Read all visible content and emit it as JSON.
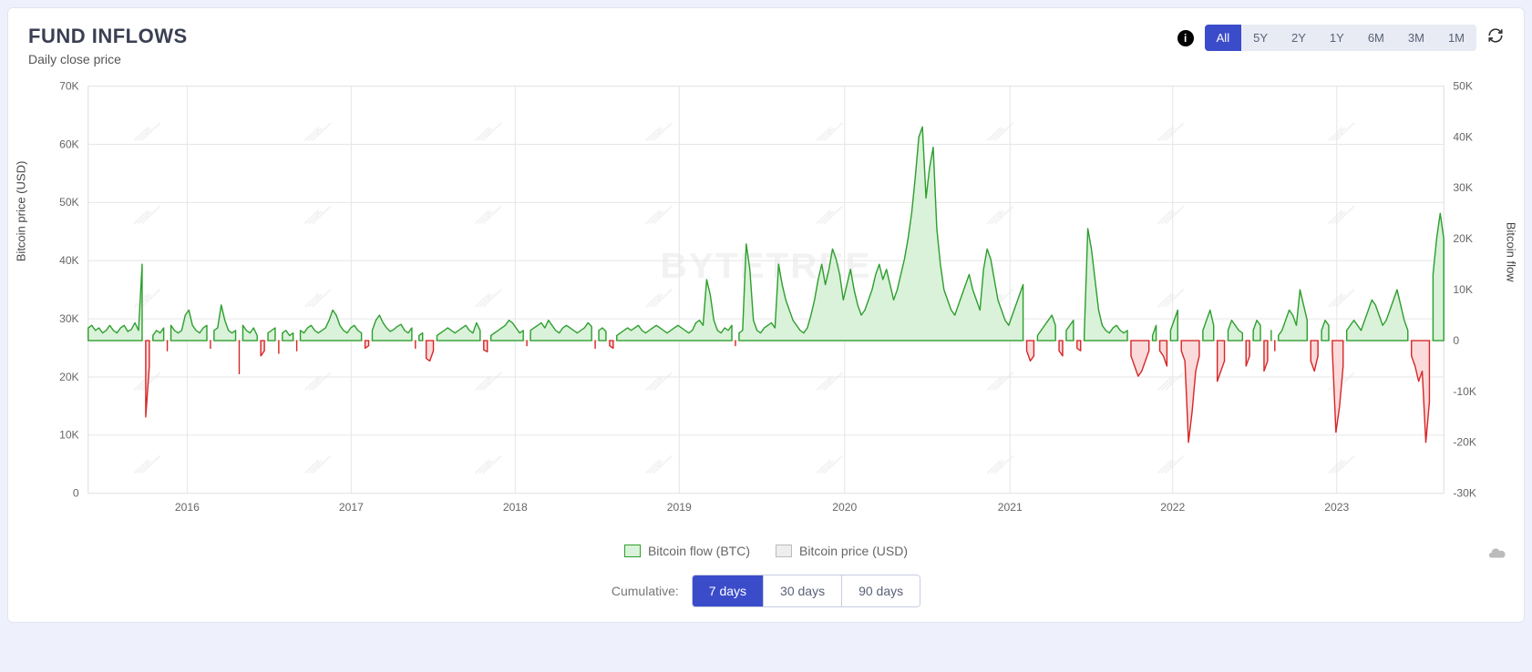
{
  "header": {
    "title": "FUND INFLOWS",
    "subtitle": "Daily close price"
  },
  "range_buttons": [
    "All",
    "5Y",
    "2Y",
    "1Y",
    "6M",
    "3M",
    "1M"
  ],
  "range_active": "All",
  "cumulative_label": "Cumulative:",
  "cumulative_buttons": [
    "7 days",
    "30 days",
    "90 days"
  ],
  "cumulative_active": "7 days",
  "legend": {
    "flow": "Bitcoin flow (BTC)",
    "price": "Bitcoin price (USD)"
  },
  "axes": {
    "left_label": "Bitcoin price (USD)",
    "right_label": "Bitcoin flow",
    "left_tick_labels": [
      "0",
      "10K",
      "20K",
      "30K",
      "40K",
      "50K",
      "60K",
      "70K"
    ],
    "left_tick_values": [
      0,
      10,
      20,
      30,
      40,
      50,
      60,
      70
    ],
    "right_tick_labels": [
      "-30K",
      "-20K",
      "-10K",
      "0",
      "10K",
      "20K",
      "30K",
      "40K",
      "50K"
    ],
    "right_tick_values": [
      -30,
      -20,
      -10,
      0,
      10,
      20,
      30,
      40,
      50
    ],
    "x_tick_labels": [
      "2016",
      "2017",
      "2018",
      "2019",
      "2020",
      "2021",
      "2022",
      "2023"
    ],
    "x_tick_positions": [
      0.073,
      0.194,
      0.315,
      0.436,
      0.558,
      0.68,
      0.8,
      0.921
    ]
  },
  "watermark": "BYTETREE",
  "chart": {
    "type": "area-line-dual-axis",
    "background_color": "#ffffff",
    "grid_color": "#e6e6e6",
    "zero_line_color": "#f0c0c0",
    "positive_flow_color": "#2e9e2e",
    "positive_flow_fill": "#d9f2d9",
    "negative_flow_color": "#d62728",
    "negative_flow_fill": "#fadada",
    "left_ylim": [
      0,
      70
    ],
    "right_ylim": [
      -30,
      50
    ],
    "flow_data": [
      2.5,
      3.0,
      2.0,
      2.5,
      1.5,
      2.0,
      3.0,
      2.0,
      1.5,
      2.5,
      3.0,
      1.8,
      2.2,
      3.5,
      2.0,
      15.0,
      -15.0,
      -5.0,
      1.0,
      2.0,
      1.5,
      2.5,
      -2.0,
      3.0,
      2.0,
      1.5,
      2.0,
      5.0,
      6.0,
      3.0,
      2.0,
      1.5,
      2.5,
      3.0,
      -1.5,
      2.0,
      2.5,
      7.0,
      4.0,
      2.0,
      1.5,
      2.0,
      -6.5,
      3.0,
      2.0,
      1.5,
      2.5,
      1.0,
      -3.0,
      -2.0,
      1.5,
      2.0,
      2.5,
      -2.5,
      1.5,
      2.0,
      1.0,
      1.5,
      -2.0,
      2.0,
      1.5,
      2.5,
      3.0,
      2.0,
      1.5,
      2.0,
      2.5,
      4.0,
      6.0,
      5.0,
      3.0,
      2.0,
      1.5,
      2.5,
      3.0,
      2.0,
      1.5,
      -1.5,
      -1.0,
      2.0,
      4.0,
      5.0,
      3.5,
      2.5,
      1.8,
      2.2,
      2.8,
      3.2,
      2.0,
      1.5,
      2.5,
      -1.5,
      1.0,
      1.5,
      -3.5,
      -4.0,
      -2.0,
      1.0,
      1.5,
      2.0,
      2.5,
      2.0,
      1.5,
      2.0,
      2.5,
      3.0,
      2.0,
      1.5,
      3.5,
      2.0,
      -1.8,
      -2.2,
      1.0,
      1.5,
      2.0,
      2.5,
      3.0,
      4.0,
      3.5,
      2.5,
      1.5,
      2.0,
      -1.0,
      2.0,
      2.5,
      3.0,
      3.5,
      2.5,
      4.0,
      3.0,
      2.0,
      1.5,
      2.5,
      3.0,
      2.5,
      2.0,
      1.5,
      2.0,
      2.5,
      3.5,
      2.8,
      -1.5,
      2.0,
      2.5,
      1.8,
      -1.0,
      -1.5,
      1.0,
      1.5,
      2.0,
      2.5,
      2.0,
      2.5,
      3.0,
      2.0,
      1.5,
      2.0,
      2.5,
      3.0,
      2.5,
      2.0,
      1.5,
      2.0,
      2.5,
      3.0,
      2.5,
      2.0,
      1.5,
      2.0,
      3.5,
      4.0,
      3.0,
      12.0,
      9.0,
      4.0,
      2.0,
      1.5,
      2.5,
      2.0,
      3.0,
      -1.0,
      1.5,
      2.0,
      19.0,
      14.0,
      4.0,
      2.0,
      1.5,
      2.5,
      3.0,
      3.5,
      2.5,
      15.0,
      11.0,
      8.0,
      6.0,
      4.0,
      3.0,
      2.0,
      1.5,
      2.5,
      5.0,
      8.0,
      12.0,
      15.0,
      11.0,
      14.0,
      18.0,
      16.0,
      13.0,
      8.0,
      11.0,
      14.0,
      10.0,
      7.0,
      5.0,
      6.0,
      8.0,
      10.0,
      13.0,
      15.0,
      12.0,
      14.0,
      11.0,
      8.0,
      10.0,
      13.0,
      16.0,
      20.0,
      25.0,
      32.0,
      40.0,
      42.0,
      28.0,
      34.0,
      38.0,
      22.0,
      15.0,
      10.0,
      8.0,
      6.0,
      5.0,
      7.0,
      9.0,
      11.0,
      13.0,
      10.0,
      8.0,
      6.0,
      14.0,
      18.0,
      16.0,
      12.0,
      8.0,
      6.0,
      4.0,
      3.0,
      5.0,
      7.0,
      9.0,
      11.0,
      -2.0,
      -4.0,
      -3.0,
      1.0,
      2.0,
      3.0,
      4.0,
      5.0,
      3.0,
      -2.0,
      -3.0,
      2.0,
      3.0,
      4.0,
      -1.5,
      -2.0,
      1.0,
      22.0,
      18.0,
      12.0,
      6.0,
      3.0,
      2.0,
      1.5,
      2.5,
      3.0,
      2.0,
      1.5,
      2.0,
      -3.0,
      -5.0,
      -7.0,
      -6.0,
      -4.0,
      -2.0,
      1.0,
      3.0,
      -2.0,
      -3.0,
      -5.0,
      2.0,
      4.0,
      6.0,
      -2.0,
      -4.0,
      -20.0,
      -14.0,
      -6.0,
      -3.0,
      2.0,
      4.0,
      6.0,
      3.0,
      -8.0,
      -6.0,
      -4.0,
      2.0,
      4.0,
      3.0,
      2.0,
      1.5,
      -5.0,
      -3.0,
      2.0,
      4.0,
      3.0,
      -6.0,
      -4.0,
      2.0,
      -2.0,
      1.0,
      2.0,
      4.0,
      6.0,
      5.0,
      3.0,
      10.0,
      7.0,
      4.0,
      -4.0,
      -6.0,
      -3.0,
      2.0,
      4.0,
      3.0,
      -2.0,
      -18.0,
      -13.0,
      -5.0,
      2.0,
      3.0,
      4.0,
      3.0,
      2.0,
      4.0,
      6.0,
      8.0,
      7.0,
      5.0,
      3.0,
      4.0,
      6.0,
      8.0,
      10.0,
      7.0,
      4.0,
      2.0,
      -3.0,
      -5.0,
      -8.0,
      -6.0,
      -20.0,
      -12.0,
      13.0,
      20.0,
      25.0,
      20.0
    ]
  },
  "colors": {
    "card_bg": "#ffffff",
    "page_bg": "#eef0fb",
    "title": "#3a3f52",
    "accent": "#3b4cca",
    "range_bg": "#e8ebf4",
    "text_muted": "#5a6178"
  }
}
